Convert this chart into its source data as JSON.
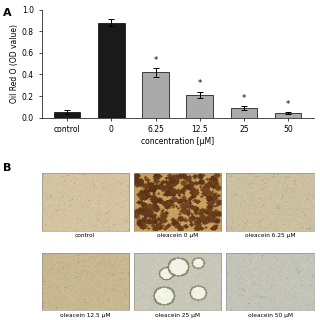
{
  "panel_a_label": "A",
  "panel_b_label": "B",
  "bar_categories": [
    "control",
    "0",
    "6.25",
    "12.5",
    "25",
    "50"
  ],
  "bar_values": [
    0.05,
    0.88,
    0.42,
    0.21,
    0.09,
    0.04
  ],
  "bar_errors": [
    0.02,
    0.03,
    0.04,
    0.03,
    0.02,
    0.01
  ],
  "bar_colors": [
    "#1a1a1a",
    "#1a1a1a",
    "#aaaaaa",
    "#aaaaaa",
    "#aaaaaa",
    "#aaaaaa"
  ],
  "ylabel": "Oil Red O (OD value)",
  "xlabel": "concentration [μM]",
  "ylim": [
    0.0,
    1.0
  ],
  "yticks": [
    0.0,
    0.2,
    0.4,
    0.6,
    0.8,
    1.0
  ],
  "significant_bars": [
    2,
    3,
    4,
    5
  ],
  "sig_marker": "*",
  "microscopy_labels": [
    [
      "control",
      "oleacein 0 μM",
      "oleacein 6.25 μM"
    ],
    [
      "oleacein 12.5 μM",
      "oleacein 25 μM",
      "oleacein 50 μM"
    ]
  ],
  "background_color": "#ffffff"
}
